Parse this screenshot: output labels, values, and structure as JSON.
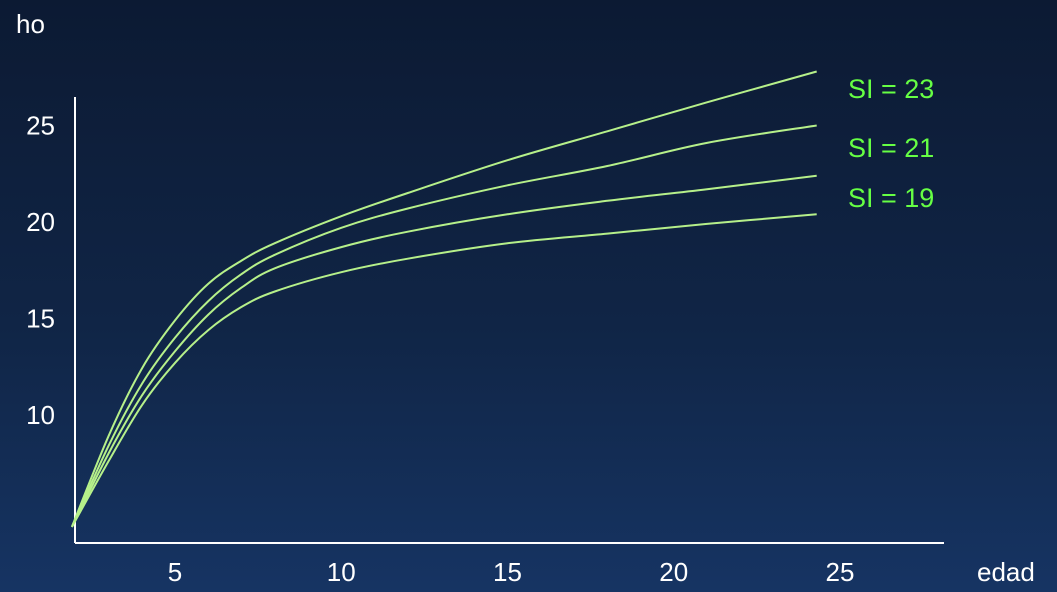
{
  "chart_data": {
    "type": "line",
    "xlabel": "edad",
    "ylabel": "ho",
    "x_ticks": [
      5,
      10,
      15,
      20,
      25
    ],
    "y_ticks": [
      10,
      15,
      20,
      25
    ],
    "grid": false,
    "colors": {
      "axis": "#ffffff",
      "text": "#ffffff",
      "series": "#b6f08a",
      "series_label": "#66ff44"
    },
    "series": [
      {
        "points": [
          [
            1.9,
            4.2
          ],
          [
            3,
            8.9
          ],
          [
            4,
            12.4
          ],
          [
            5,
            14.9
          ],
          [
            6,
            16.8
          ],
          [
            7,
            18.0
          ],
          [
            8,
            18.9
          ],
          [
            10,
            20.3
          ],
          [
            12,
            21.5
          ],
          [
            15,
            23.2
          ],
          [
            18,
            24.7
          ],
          [
            21,
            26.2
          ],
          [
            24.3,
            27.8
          ]
        ]
      },
      {
        "name": "SI = 23",
        "points": [
          [
            1.9,
            4.2
          ],
          [
            3,
            8.4
          ],
          [
            4,
            11.6
          ],
          [
            5,
            14.0
          ],
          [
            6,
            15.9
          ],
          [
            7,
            17.3
          ],
          [
            8,
            18.3
          ],
          [
            10,
            19.7
          ],
          [
            12,
            20.7
          ],
          [
            15,
            21.9
          ],
          [
            18,
            22.9
          ],
          [
            21,
            24.1
          ],
          [
            24.3,
            25.0
          ]
        ]
      },
      {
        "name": "SI = 21",
        "points": [
          [
            1.9,
            4.2
          ],
          [
            3,
            8.0
          ],
          [
            4,
            11.0
          ],
          [
            5,
            13.3
          ],
          [
            6,
            15.2
          ],
          [
            7,
            16.6
          ],
          [
            8,
            17.6
          ],
          [
            10,
            18.7
          ],
          [
            12,
            19.5
          ],
          [
            15,
            20.4
          ],
          [
            18,
            21.1
          ],
          [
            21,
            21.7
          ],
          [
            24.3,
            22.4
          ]
        ]
      },
      {
        "name": "SI = 19",
        "points": [
          [
            1.9,
            4.2
          ],
          [
            3,
            7.6
          ],
          [
            4,
            10.5
          ],
          [
            5,
            12.7
          ],
          [
            6,
            14.4
          ],
          [
            7,
            15.6
          ],
          [
            8,
            16.4
          ],
          [
            10,
            17.4
          ],
          [
            12,
            18.1
          ],
          [
            15,
            18.9
          ],
          [
            18,
            19.4
          ],
          [
            21,
            19.9
          ],
          [
            24.3,
            20.4
          ]
        ]
      }
    ]
  }
}
